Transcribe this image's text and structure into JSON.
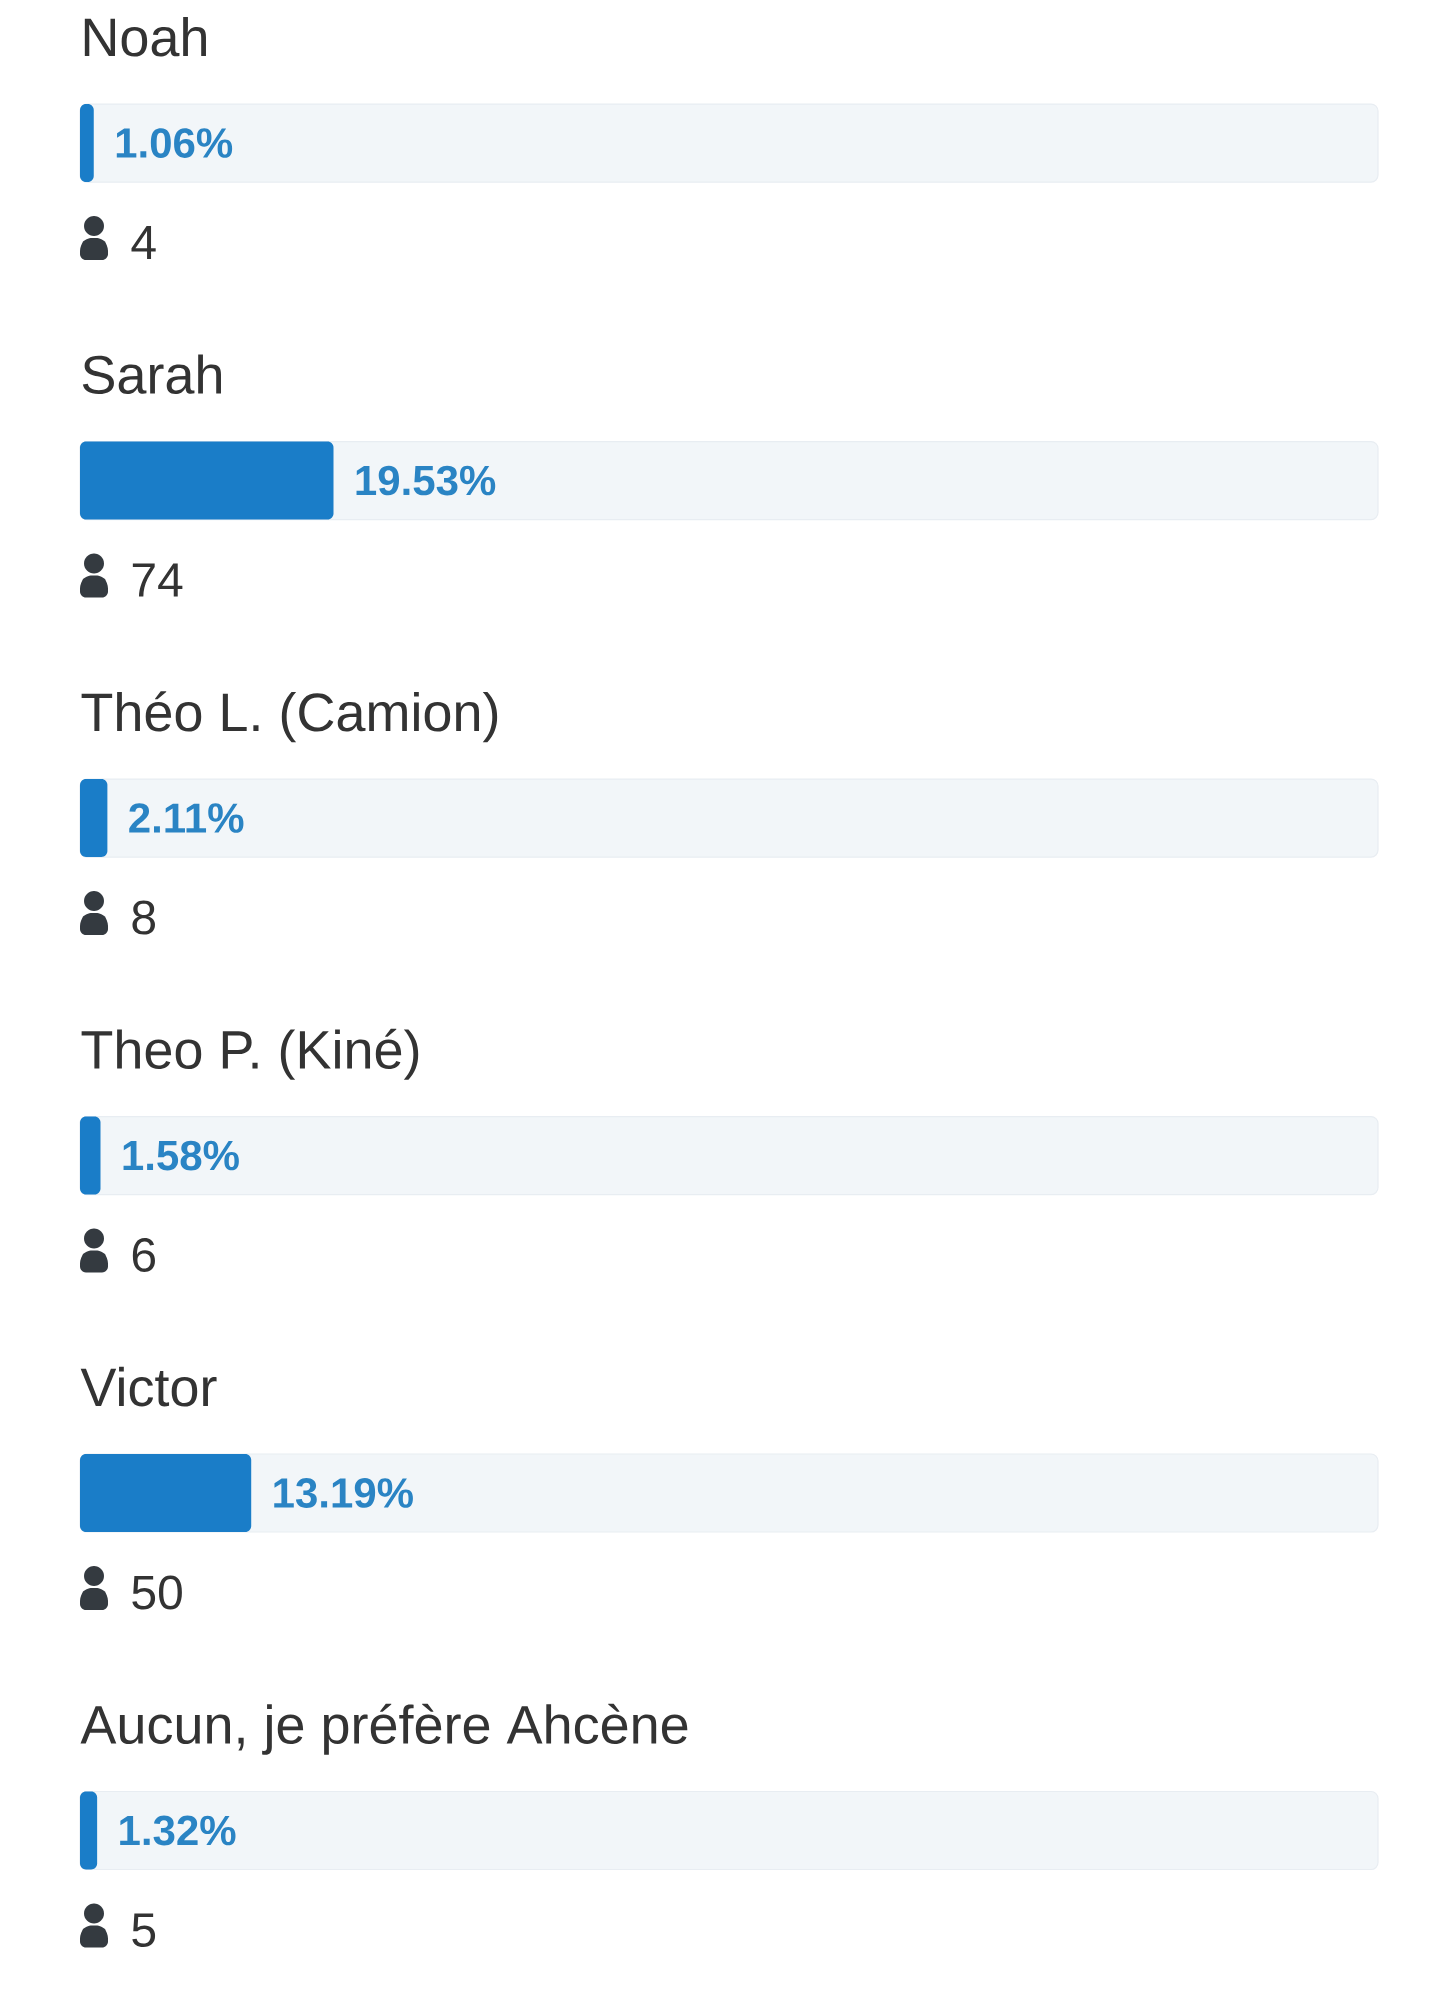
{
  "chart_data": {
    "type": "bar",
    "orientation": "horizontal",
    "categories": [
      "Noah",
      "Sarah",
      "Théo L. (Camion)",
      "Theo P. (Kiné)",
      "Victor",
      "Aucun, je préfère Ahcène"
    ],
    "values": [
      1.06,
      19.53,
      2.11,
      1.58,
      13.19,
      1.32
    ],
    "value_labels": [
      "1.06%",
      "19.53%",
      "2.11%",
      "1.58%",
      "13.19%",
      "1.32%"
    ],
    "color": "#1a7dc8",
    "xlim": [
      0,
      100
    ],
    "tick_labels": "y",
    "annotations": [
      "4",
      "74",
      "8",
      "6",
      "50",
      "5"
    ]
  }
}
